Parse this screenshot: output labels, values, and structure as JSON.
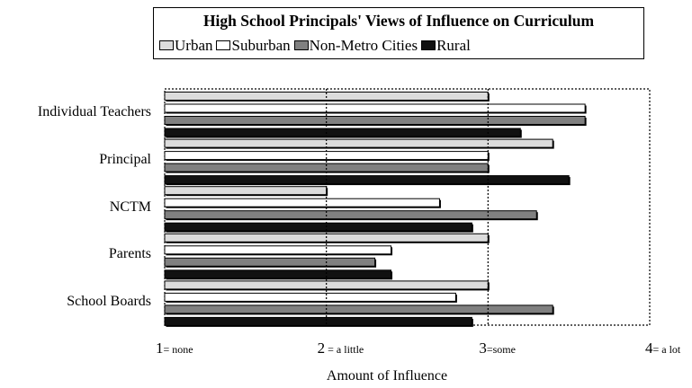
{
  "chart_data": {
    "type": "bar",
    "orientation": "horizontal",
    "title": "High School Principals' Views of Influence on Curriculum",
    "xlabel": "Amount of Influence",
    "xlim": [
      1,
      4
    ],
    "xticks": [
      {
        "value": 1,
        "num": "1",
        "desc": "= none"
      },
      {
        "value": 2,
        "num": "2",
        "desc": " = a little"
      },
      {
        "value": 3,
        "num": "3",
        "desc": "=some"
      },
      {
        "value": 4,
        "num": "4",
        "desc": "= a lot"
      }
    ],
    "categories": [
      "Individual Teachers",
      "Principal",
      "NCTM",
      "Parents",
      "School Boards"
    ],
    "series": [
      {
        "name": "Urban",
        "color": "#dcdcdc",
        "values": [
          3.0,
          3.4,
          2.0,
          3.0,
          3.0
        ]
      },
      {
        "name": "Suburban",
        "color": "#ffffff",
        "values": [
          3.6,
          3.0,
          2.7,
          2.4,
          2.8
        ]
      },
      {
        "name": "Non-Metro Cities",
        "color": "#808080",
        "values": [
          3.6,
          3.0,
          3.3,
          2.3,
          3.4
        ]
      },
      {
        "name": "Rural",
        "color": "#111111",
        "values": [
          3.2,
          3.5,
          2.9,
          2.4,
          2.9
        ]
      }
    ],
    "grid": "vertical dashed lines at 2 and 3",
    "legend_position": "top"
  }
}
